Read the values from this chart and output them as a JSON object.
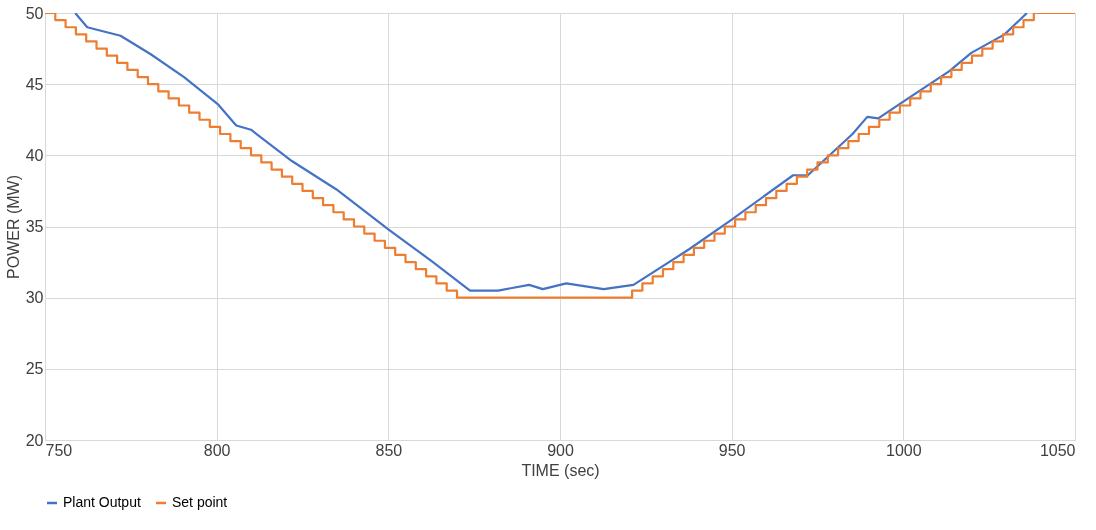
{
  "chart_data": {
    "type": "line",
    "xlabel": "TIME (sec)",
    "ylabel": "POWER (MW)",
    "xlim": [
      750,
      1050
    ],
    "xticks": [
      750,
      800,
      850,
      900,
      950,
      1000,
      1050
    ],
    "ylim": [
      20,
      50
    ],
    "yticks": [
      20,
      25,
      30,
      35,
      40,
      45,
      50
    ],
    "grid": true,
    "legend": "bottom",
    "marker": "none",
    "line_style": "solid",
    "series": [
      {
        "name": "Plant Output",
        "color": "#4472c4",
        "x": [
          758.8,
          762.3,
          772,
          780.8,
          790.5,
          800.3,
          805.7,
          810,
          821.9,
          834.9,
          850,
          863,
          873.8,
          882,
          891,
          895,
          901.8,
          912.7,
          921.4,
          937.6,
          949.5,
          967.9,
          972.2,
          985.2,
          989.5,
          992.7,
          1001.4,
          1013.3,
          1019.8,
          1029.5,
          1036
        ],
        "values": [
          50,
          49.0,
          48.4,
          47.1,
          45.5,
          43.6,
          42.1,
          41.8,
          39.6,
          37.6,
          34.8,
          32.5,
          30.5,
          30.5,
          30.9,
          30.6,
          31.0,
          30.6,
          30.9,
          33.4,
          35.4,
          38.6,
          38.6,
          41.5,
          42.7,
          42.6,
          44.0,
          45.9,
          47.2,
          48.5,
          50
        ]
      },
      {
        "name": "Set point",
        "color": "#ed7d31",
        "type": "step",
        "x": [
          750,
          753,
          756,
          759,
          762,
          765,
          768,
          771,
          774,
          777,
          780,
          783,
          786,
          789,
          792,
          795,
          798,
          801,
          804,
          807,
          810,
          813,
          816,
          819,
          822,
          825,
          828,
          831,
          834,
          837,
          840,
          843,
          846,
          849,
          852,
          855,
          858,
          861,
          864,
          867,
          870,
          921,
          924,
          927,
          930,
          933,
          936,
          939,
          942,
          945,
          948,
          951,
          954,
          957,
          960,
          963,
          966,
          969,
          972,
          975,
          978,
          981,
          984,
          987,
          990,
          993,
          996,
          999,
          1002,
          1005,
          1008,
          1011,
          1014,
          1017,
          1020,
          1023,
          1026,
          1029,
          1032,
          1035,
          1038,
          1050
        ],
        "values": [
          50,
          49.5,
          49,
          48.5,
          48,
          47.5,
          47,
          46.5,
          46,
          45.5,
          45,
          44.5,
          44,
          43.5,
          43,
          42.5,
          42,
          41.5,
          41,
          40.5,
          40,
          39.5,
          39,
          38.5,
          38,
          37.5,
          37,
          36.5,
          36,
          35.5,
          35,
          34.5,
          34,
          33.5,
          33,
          32.5,
          32,
          31.5,
          31,
          30.5,
          30,
          30.5,
          31,
          31.5,
          32,
          32.5,
          33,
          33.5,
          34,
          34.5,
          35,
          35.5,
          36,
          36.5,
          37,
          37.5,
          38,
          38.5,
          39,
          39.5,
          40,
          40.5,
          41,
          41.5,
          42,
          42.5,
          43,
          43.5,
          44,
          44.5,
          45,
          45.5,
          46,
          46.5,
          47,
          47.5,
          48,
          48.5,
          49,
          49.5,
          50,
          50
        ]
      }
    ]
  }
}
